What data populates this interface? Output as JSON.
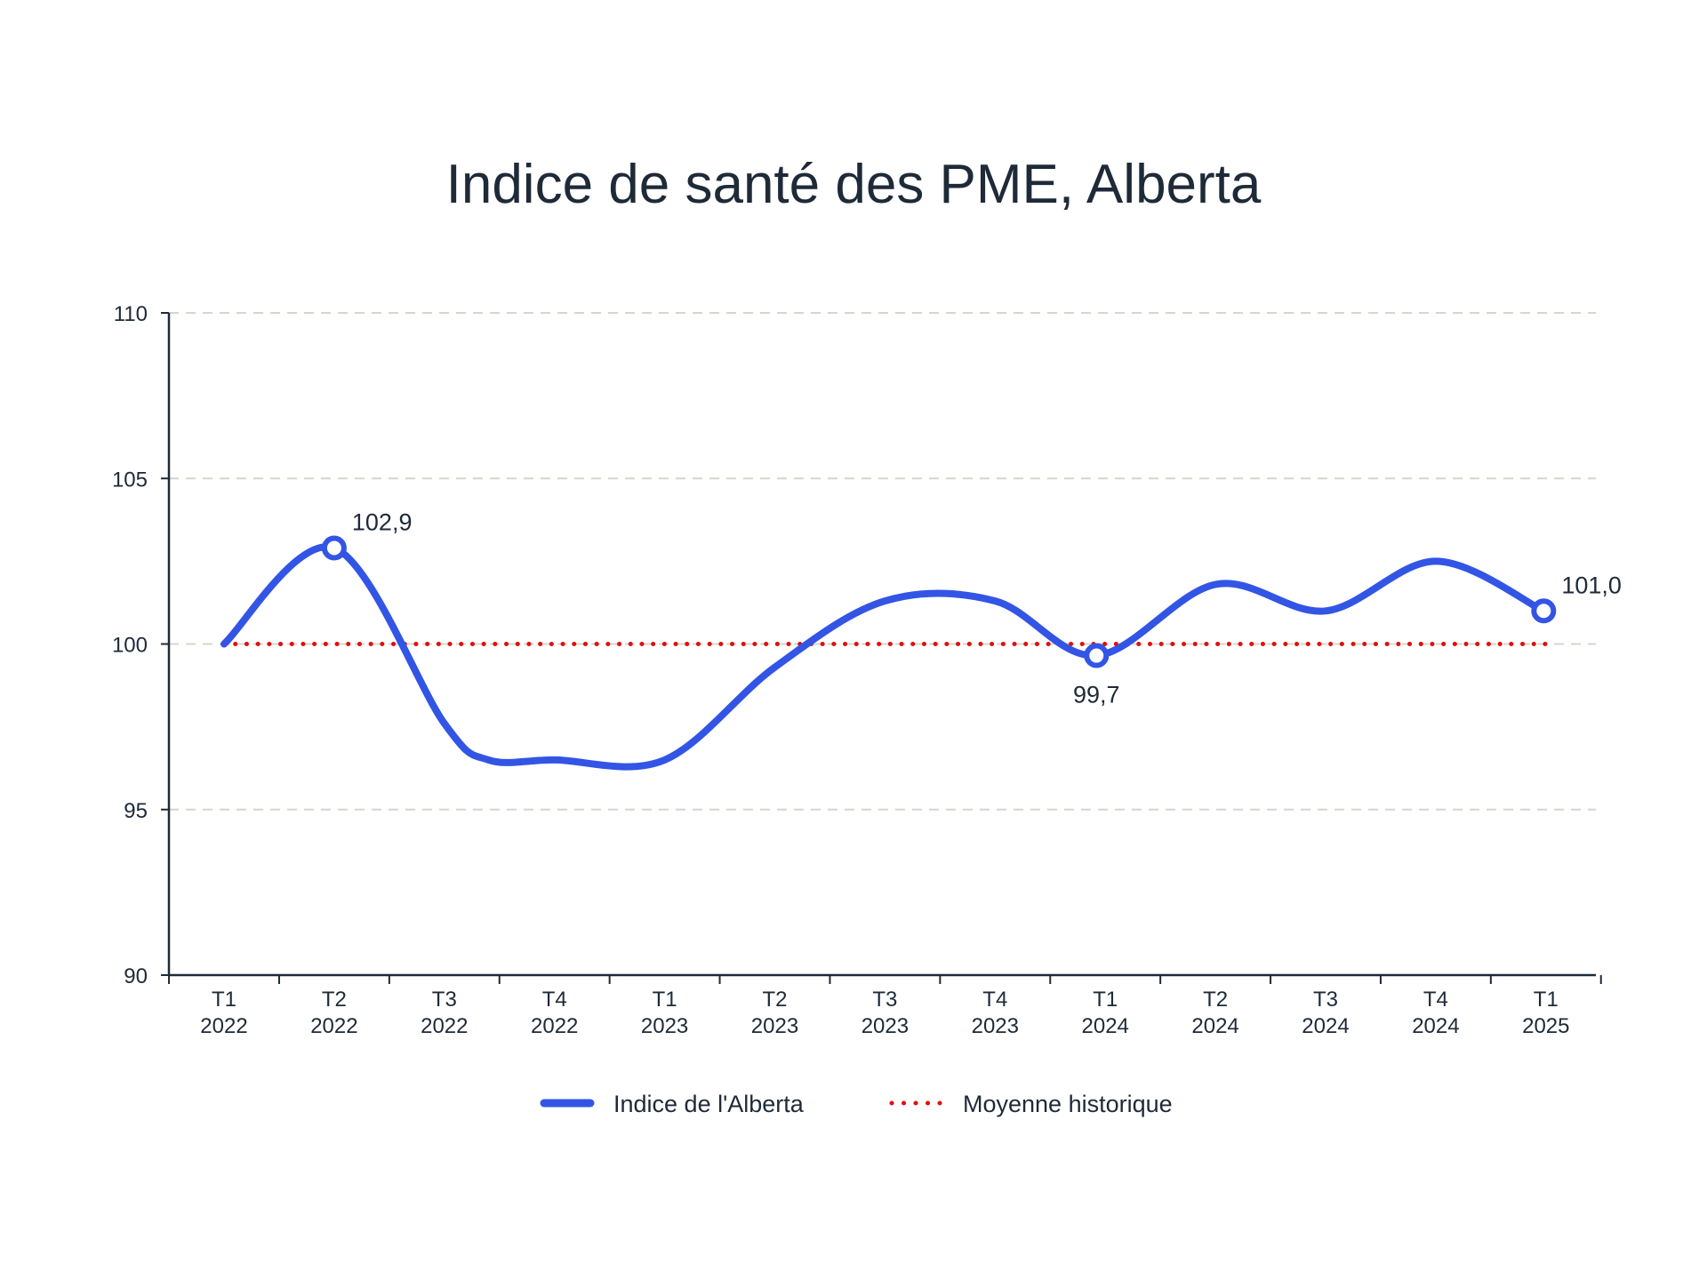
{
  "chart_data": {
    "type": "line",
    "title": "Indice de santé des PME, Alberta",
    "xlabel": "",
    "ylabel": "",
    "ylim": [
      90,
      110
    ],
    "yticks": [
      "90",
      "95",
      "100",
      "105",
      "110"
    ],
    "categories": [
      [
        "T1",
        "2022"
      ],
      [
        "T2",
        "2022"
      ],
      [
        "T3",
        "2022"
      ],
      [
        "T4",
        "2022"
      ],
      [
        "T1",
        "2023"
      ],
      [
        "T2",
        "2023"
      ],
      [
        "T3",
        "2023"
      ],
      [
        "T4",
        "2023"
      ],
      [
        "T1",
        "2024"
      ],
      [
        "T2",
        "2024"
      ],
      [
        "T3",
        "2024"
      ],
      [
        "T4",
        "2024"
      ],
      [
        "T1",
        "2025"
      ]
    ],
    "grid": "horizontal-dashed",
    "legend_position": "bottom-center",
    "series": [
      {
        "name": "Indice de l'Alberta",
        "style": "solid",
        "color": "#3355e5",
        "points": [
          [
            0,
            100.0
          ],
          [
            1.0,
            102.9
          ],
          [
            2.0,
            97.6
          ],
          [
            2.4,
            96.5
          ],
          [
            3.0,
            96.5
          ],
          [
            4.0,
            96.5
          ],
          [
            5.0,
            99.3
          ],
          [
            6.0,
            101.3
          ],
          [
            7.0,
            101.3
          ],
          [
            7.92,
            99.65
          ],
          [
            9.0,
            101.8
          ],
          [
            10.0,
            101.0
          ],
          [
            11.0,
            102.5
          ],
          [
            11.98,
            101.0
          ]
        ]
      },
      {
        "name": "Moyenne historique",
        "style": "dotted",
        "color": "#e01010",
        "points": [
          [
            0,
            100
          ],
          [
            12,
            100
          ]
        ]
      }
    ],
    "annotations": [
      {
        "text": "102,9",
        "x": 1.0,
        "y": 102.9,
        "position": "above-right"
      },
      {
        "text": "99,7",
        "x": 7.92,
        "y": 99.65,
        "position": "below"
      },
      {
        "text": "101,0",
        "x": 11.98,
        "y": 101.0,
        "position": "above-right"
      }
    ],
    "grid_color": "#d6d6cc",
    "axis_color": "#1e2a38"
  }
}
